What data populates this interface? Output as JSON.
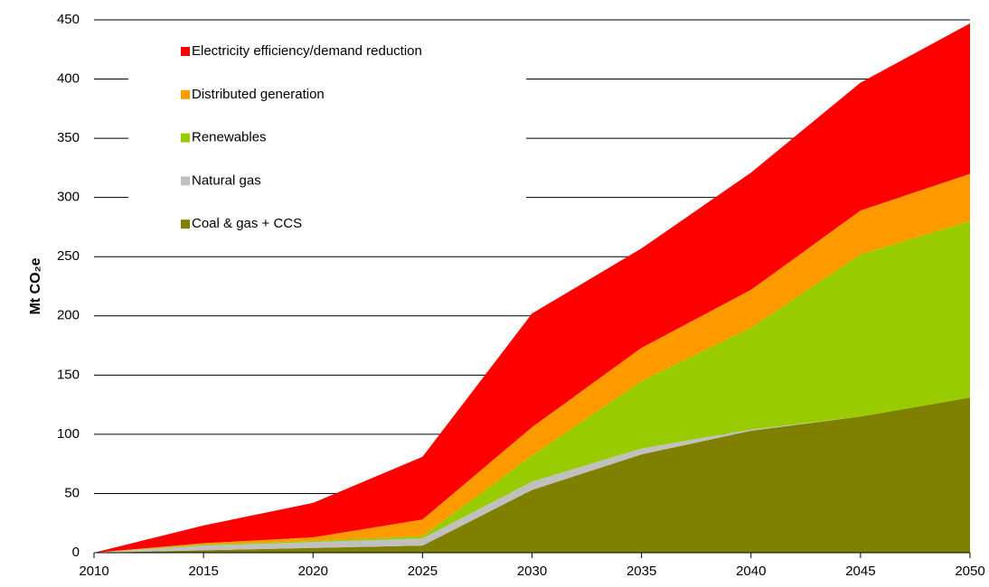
{
  "chart_data": {
    "type": "stacked_area",
    "y_label": "Mt CO₂e",
    "x": [
      2010,
      2015,
      2020,
      2025,
      2030,
      2035,
      2040,
      2045,
      2050
    ],
    "xlim": [
      2010,
      2050
    ],
    "xticks": [
      2010,
      2015,
      2020,
      2025,
      2030,
      2035,
      2040,
      2045,
      2050
    ],
    "ylim": [
      0,
      450
    ],
    "yticks": [
      0,
      50,
      100,
      150,
      200,
      250,
      300,
      350,
      400,
      450
    ],
    "grid": true,
    "legend": "upper left",
    "series": [
      {
        "name": "Coal & gas + CCS",
        "color": "#808000",
        "values": [
          0,
          2,
          4,
          6,
          53,
          83,
          103,
          115,
          131
        ]
      },
      {
        "name": "Natural gas",
        "color": "#c0c0c0",
        "values": [
          0,
          4,
          5,
          6,
          7,
          5,
          1,
          0,
          0
        ]
      },
      {
        "name": "Renewables",
        "color": "#99cc00",
        "values": [
          0,
          1,
          1,
          2,
          22,
          57,
          86,
          137,
          149
        ]
      },
      {
        "name": "Distributed generation",
        "color": "#ff9900",
        "values": [
          0,
          1,
          3,
          14,
          24,
          28,
          32,
          37,
          40
        ]
      },
      {
        "name": "Electricity efficiency/demand reduction",
        "color": "#ff0000",
        "values": [
          0,
          15,
          29,
          53,
          96,
          84,
          99,
          108,
          127
        ]
      }
    ]
  }
}
